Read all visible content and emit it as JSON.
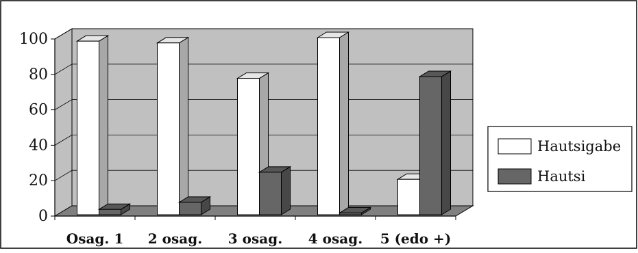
{
  "chart_data": {
    "type": "bar",
    "categories": [
      "Osag. 1",
      "2 osag.",
      "3 osag.",
      "4 osag.",
      "5 (edo +)"
    ],
    "series": [
      {
        "name": "Hautsigabe",
        "values": [
          98,
          97,
          77,
          100,
          20
        ],
        "color": "#ffffff"
      },
      {
        "name": "Hautsi",
        "values": [
          3,
          7,
          24,
          1,
          78
        ],
        "color": "#666666"
      }
    ],
    "yticks": [
      0,
      20,
      40,
      60,
      80,
      100
    ],
    "ylim": [
      0,
      100
    ],
    "grid": true,
    "three_d": true,
    "legend_position": "right",
    "wall_color": "#c0c0c0",
    "floor_color": "#808080"
  }
}
